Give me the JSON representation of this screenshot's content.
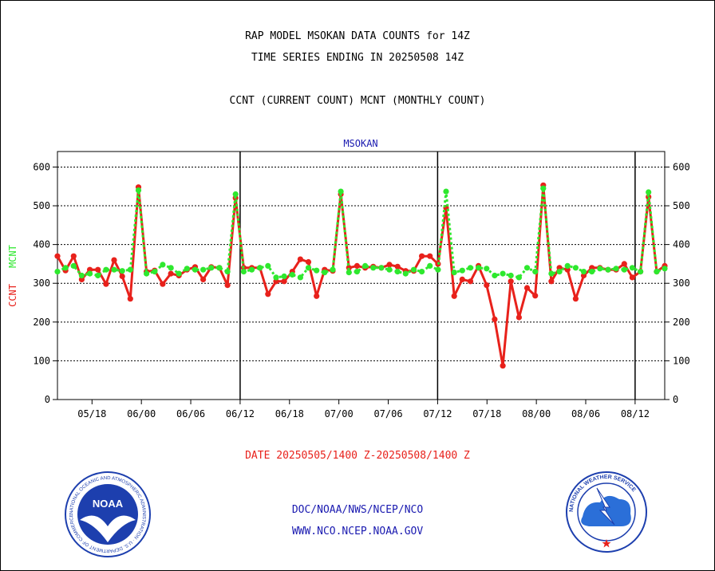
{
  "header": {
    "title_line1": "RAP MODEL MSOKAN DATA COUNTS for 14Z",
    "title_line2": "TIME SERIES ENDING IN 20250508 14Z",
    "subtitle": "CCNT (CURRENT COUNT) MCNT (MONTHLY COUNT)"
  },
  "footer": {
    "date_range": "DATE 20250505/1400 Z-20250508/1400 Z",
    "credit_line1": "DOC/NOAA/NWS/NCEP/NCO",
    "credit_line2": "WWW.NCO.NCEP.NOAA.GOV"
  },
  "logos": {
    "noaa_icon": "noaa-logo-icon",
    "nws_icon": "nws-logo-icon",
    "noaa_text": "NOAA",
    "noaa_ring": "NATIONAL OCEANIC AND ATMOSPHERIC ADMINISTRATION · U.S. DEPARTMENT OF COMMERCE",
    "nws_ring": "NATIONAL WEATHER SERVICE"
  },
  "colors": {
    "ccnt": "#e8211b",
    "mcnt": "#2ee82e",
    "station_label": "#1a1ab0",
    "noaa_blue": "#1d3fae",
    "nws_blue": "#2b6fd8"
  },
  "chart_data": {
    "type": "line",
    "title": "MSOKAN",
    "ylabel_left": [
      {
        "text": "CCNT",
        "color": "#e8211b"
      },
      {
        "text": "MCNT",
        "color": "#2ee82e"
      }
    ],
    "ylim": [
      0,
      640
    ],
    "yticks": [
      0,
      100,
      200,
      300,
      400,
      500,
      600
    ],
    "grid": true,
    "right_axis_mirrored": true,
    "xlim": [
      0,
      61.5
    ],
    "xticks": [
      {
        "label": "05/18",
        "x": 3.5
      },
      {
        "label": "06/00",
        "x": 8.5
      },
      {
        "label": "06/06",
        "x": 13.5
      },
      {
        "label": "06/12",
        "x": 18.5
      },
      {
        "label": "06/18",
        "x": 23.5
      },
      {
        "label": "07/00",
        "x": 28.5
      },
      {
        "label": "07/06",
        "x": 33.5
      },
      {
        "label": "07/12",
        "x": 38.5
      },
      {
        "label": "07/18",
        "x": 43.5
      },
      {
        "label": "08/00",
        "x": 48.5
      },
      {
        "label": "08/06",
        "x": 53.5
      },
      {
        "label": "08/12",
        "x": 58.5
      }
    ],
    "day_boundaries": [
      18.5,
      38.5,
      58.5
    ],
    "series": [
      {
        "name": "CCNT",
        "color": "#e8211b",
        "values": [
          370,
          333,
          370,
          310,
          335,
          335,
          298,
          360,
          318,
          260,
          548,
          330,
          333,
          298,
          325,
          320,
          335,
          342,
          310,
          342,
          340,
          295,
          520,
          340,
          340,
          340,
          272,
          305,
          305,
          330,
          362,
          355,
          267,
          335,
          332,
          530,
          340,
          345,
          340,
          343,
          340,
          348,
          343,
          332,
          332,
          370,
          370,
          350,
          495,
          267,
          310,
          305,
          345,
          295,
          207,
          87,
          305,
          212,
          288,
          268,
          553,
          305,
          340,
          335,
          260,
          320,
          340,
          340,
          335,
          335,
          350,
          315,
          330,
          523,
          330,
          345
        ]
      },
      {
        "name": "MCNT",
        "color": "#2ee82e",
        "values": [
          330,
          340,
          345,
          320,
          325,
          320,
          335,
          335,
          332,
          335,
          540,
          325,
          330,
          348,
          340,
          325,
          338,
          335,
          335,
          340,
          340,
          330,
          530,
          330,
          335,
          340,
          345,
          315,
          318,
          322,
          315,
          340,
          333,
          328,
          335,
          537,
          328,
          330,
          345,
          340,
          340,
          335,
          330,
          325,
          335,
          330,
          345,
          335,
          537,
          328,
          333,
          340,
          340,
          338,
          320,
          325,
          320,
          315,
          340,
          330,
          545,
          325,
          330,
          345,
          340,
          330,
          330,
          338,
          335,
          338,
          335,
          340,
          330,
          535,
          330,
          338
        ]
      }
    ]
  }
}
